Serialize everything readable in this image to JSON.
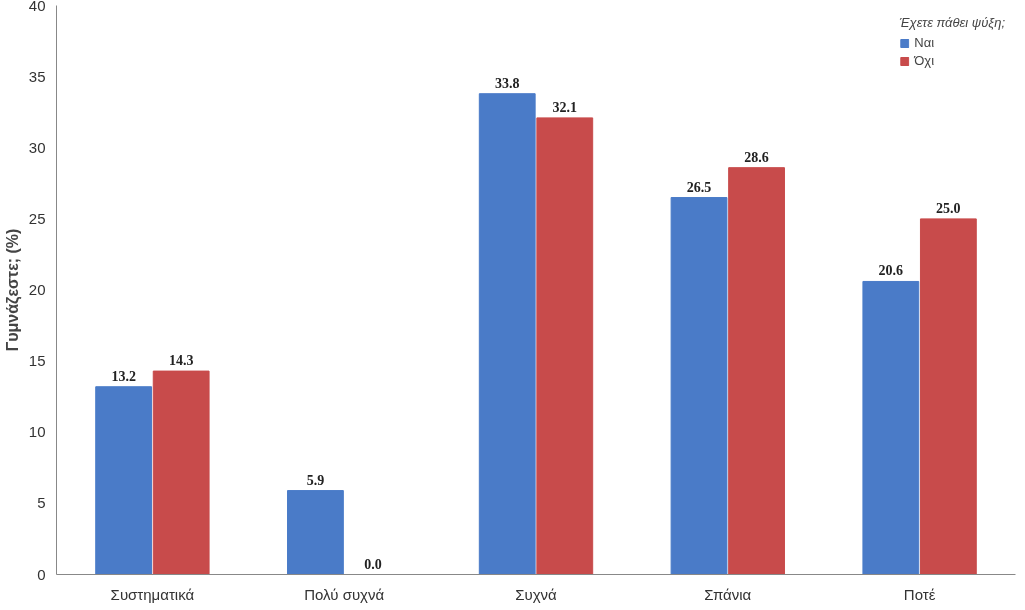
{
  "chart_data": {
    "type": "bar",
    "ylabel": "Γυμνάζεστε; (%)",
    "legend_title": "Έχετε πάθει ψύξη;",
    "categories": [
      "Συστηματικά",
      "Πολύ συχνά",
      "Συχνά",
      "Σπάνια",
      "Ποτέ"
    ],
    "series": [
      {
        "name": "Ναι",
        "color": "#4a7bc8",
        "values": [
          13.2,
          5.9,
          33.8,
          26.5,
          20.6
        ],
        "value_labels": [
          "13.2",
          "5.9",
          "33.8",
          "26.5",
          "20.6"
        ]
      },
      {
        "name": "Όχι",
        "color": "#c84b4b",
        "values": [
          14.3,
          0.0,
          32.1,
          28.6,
          25.0
        ],
        "value_labels": [
          "14.3",
          "0.0",
          "32.1",
          "28.6",
          "25.0"
        ]
      }
    ],
    "ylim": [
      0,
      40
    ],
    "yticks": [
      0,
      5,
      10,
      15,
      20,
      25,
      30,
      35,
      40
    ],
    "legend": "top right",
    "grid": false
  }
}
